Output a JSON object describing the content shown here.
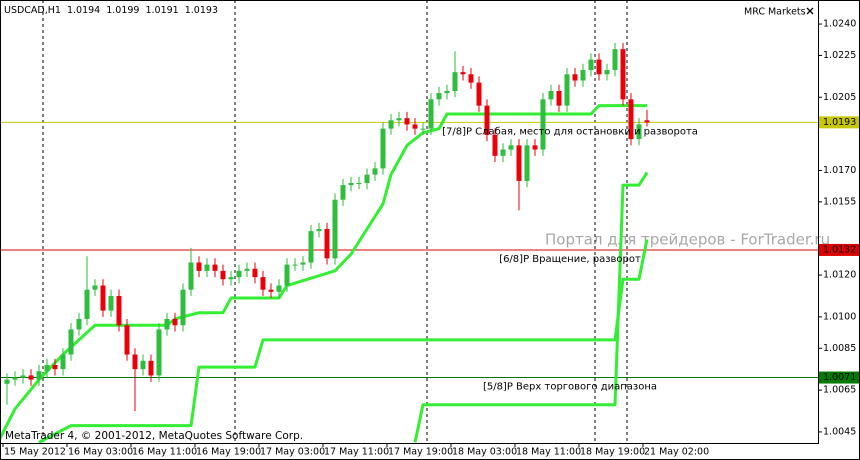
{
  "chart_data": {
    "type": "candlestick",
    "symbol": "USDCAD,H1",
    "broker": "MRC Markets",
    "watermark": "Портал для трейдеров - ForTrader.ru",
    "copyright": "MetaTrader 4, © 2001-2012, MetaQuotes Software Corp.",
    "up_color": "#2ebd3c",
    "down_color": "#e8000b",
    "categories": [
      "15 May 2012",
      null,
      null,
      null,
      null,
      null,
      null,
      null,
      "16 May 03:00",
      null,
      null,
      null,
      null,
      null,
      null,
      null,
      "16 May 11:00",
      null,
      null,
      null,
      null,
      null,
      null,
      null,
      "16 May 19:00",
      null,
      null,
      null,
      null,
      null,
      null,
      null,
      "17 May 03:00",
      null,
      null,
      null,
      null,
      null,
      null,
      null,
      "17 May 11:00",
      null,
      null,
      null,
      null,
      null,
      null,
      null,
      "17 May 19:00",
      null,
      null,
      null,
      null,
      null,
      null,
      null,
      "18 May 03:00",
      null,
      null,
      null,
      null,
      null,
      null,
      null,
      "18 May 11:00",
      null,
      null,
      null,
      null,
      null,
      null,
      null,
      "18 May 19:00",
      null,
      null,
      null,
      null,
      null,
      null,
      null,
      "21 May 02:00"
    ],
    "open": [
      1.0068,
      1.007,
      1.0071,
      1.0072,
      1.007,
      1.0074,
      1.0077,
      1.0075,
      1.0082,
      1.0094,
      1.0099,
      1.0113,
      1.0115,
      1.0103,
      1.011,
      1.0096,
      1.0082,
      1.0075,
      1.0079,
      1.0072,
      1.0094,
      1.0099,
      1.0096,
      1.0113,
      1.0126,
      1.0122,
      1.0125,
      1.0122,
      1.0118,
      1.0119,
      1.0122,
      1.0123,
      1.0119,
      1.0113,
      1.0112,
      1.0115,
      1.0125,
      1.0125,
      1.0126,
      1.0141,
      1.0142,
      1.0128,
      1.0156,
      1.0163,
      1.0164,
      1.0164,
      1.0168,
      1.0171,
      1.019,
      1.0194,
      1.0195,
      1.0192,
      1.019,
      1.019,
      1.0204,
      1.0207,
      1.0208,
      1.0217,
      1.0216,
      1.0212,
      1.0201,
      1.0187,
      1.0177,
      1.018,
      1.0182,
      1.0165,
      1.0182,
      1.018,
      1.0204,
      1.0208,
      1.0201,
      1.0216,
      1.0213,
      1.0218,
      1.0223,
      1.0216,
      1.0218,
      1.0228,
      1.0204,
      1.0185,
      1.0194
    ],
    "high": [
      1.0073,
      1.0074,
      1.0075,
      1.0075,
      1.0077,
      1.008,
      1.008,
      1.0085,
      1.0097,
      1.0102,
      1.0129,
      1.0118,
      1.0118,
      1.0113,
      1.0113,
      1.0099,
      1.0085,
      1.0082,
      1.0082,
      1.0097,
      1.0102,
      1.0102,
      1.0116,
      1.0133,
      1.0129,
      1.0128,
      1.0128,
      1.0125,
      1.0122,
      1.0125,
      1.0126,
      1.0126,
      1.0122,
      1.0116,
      1.0118,
      1.0128,
      1.0128,
      1.0129,
      1.0144,
      1.0145,
      1.0145,
      1.0159,
      1.0166,
      1.0167,
      1.0167,
      1.0171,
      1.0174,
      1.0193,
      1.0197,
      1.0198,
      1.0198,
      1.0195,
      1.0193,
      1.0207,
      1.021,
      1.0211,
      1.0227,
      1.022,
      1.0219,
      1.0215,
      1.0204,
      1.019,
      1.0183,
      1.0185,
      1.0185,
      1.0185,
      1.0185,
      1.0207,
      1.0211,
      1.0211,
      1.0219,
      1.0219,
      1.0221,
      1.0226,
      1.0226,
      1.0221,
      1.0231,
      1.0231,
      1.0207,
      1.0195,
      1.0199
    ],
    "low": [
      1.0058,
      1.0067,
      1.0068,
      1.0067,
      1.0067,
      1.0071,
      1.0072,
      1.0072,
      1.0079,
      1.0091,
      1.0096,
      1.011,
      1.01,
      1.01,
      1.0093,
      1.0079,
      1.0055,
      1.0072,
      1.0069,
      1.0069,
      1.0091,
      1.0093,
      1.0093,
      1.011,
      1.0119,
      1.0119,
      1.0119,
      1.0115,
      1.0115,
      1.0116,
      1.0119,
      1.0116,
      1.011,
      1.0109,
      1.0109,
      1.0112,
      1.0122,
      1.0122,
      1.0123,
      1.0138,
      1.0125,
      1.0125,
      1.0153,
      1.016,
      1.0161,
      1.0161,
      1.0165,
      1.0168,
      1.0187,
      1.0191,
      1.0189,
      1.0187,
      1.0187,
      1.0187,
      1.0201,
      1.0204,
      1.0205,
      1.0213,
      1.0209,
      1.0198,
      1.0184,
      1.0174,
      1.0174,
      1.0177,
      1.0151,
      1.0162,
      1.0177,
      1.0177,
      1.0201,
      1.0198,
      1.0198,
      1.021,
      1.021,
      1.0215,
      1.0213,
      1.0213,
      1.0215,
      1.0201,
      1.0182,
      1.0182,
      1.0191
    ],
    "close": [
      1.007,
      1.0071,
      1.0072,
      1.007,
      1.0074,
      1.0077,
      1.0075,
      1.0082,
      1.0094,
      1.0099,
      1.0113,
      1.0115,
      1.0103,
      1.011,
      1.0096,
      1.0082,
      1.0075,
      1.0079,
      1.0072,
      1.0094,
      1.0099,
      1.0096,
      1.0113,
      1.0126,
      1.0122,
      1.0125,
      1.0122,
      1.0118,
      1.0119,
      1.0122,
      1.0123,
      1.0119,
      1.0113,
      1.0112,
      1.0115,
      1.0125,
      1.0125,
      1.0126,
      1.0141,
      1.0142,
      1.0128,
      1.0156,
      1.0163,
      1.0164,
      1.0164,
      1.0168,
      1.0171,
      1.019,
      1.0194,
      1.0195,
      1.0192,
      1.019,
      1.019,
      1.0204,
      1.0207,
      1.0208,
      1.0217,
      1.0216,
      1.0212,
      1.0201,
      1.0187,
      1.0177,
      1.018,
      1.0182,
      1.0165,
      1.0182,
      1.018,
      1.0204,
      1.0208,
      1.0201,
      1.0216,
      1.0213,
      1.0218,
      1.0223,
      1.0216,
      1.0218,
      1.0228,
      1.0204,
      1.0185,
      1.0192,
      1.0193
    ],
    "lines": [
      {
        "color": "#33ee33",
        "x": [
          -1,
          1,
          4,
          7,
          9,
          11,
          20,
          21,
          24,
          27,
          28,
          32,
          34,
          35,
          41,
          43,
          45,
          47,
          48,
          50,
          52,
          54,
          55,
          73,
          74,
          80
        ],
        "values": [
          1.0041,
          1.0056,
          1.007,
          1.0082,
          1.0089,
          1.0096,
          1.0096,
          1.0099,
          1.0102,
          1.0102,
          1.0109,
          1.0109,
          1.0109,
          1.0115,
          1.0122,
          1.013,
          1.0142,
          1.0154,
          1.0168,
          1.0182,
          1.0188,
          1.019,
          1.0197,
          1.0197,
          1.0201,
          1.0201
        ]
      },
      {
        "color": "#33ee33",
        "x": [
          4,
          8,
          23,
          24,
          31,
          32,
          76,
          77,
          79,
          80
        ],
        "values": [
          1.004,
          1.0048,
          1.0048,
          1.0076,
          1.0076,
          1.0089,
          1.0089,
          1.0118,
          1.0118,
          1.0137
        ]
      },
      {
        "color": "#33ee33",
        "x": [
          51,
          52,
          76,
          77,
          79,
          80
        ],
        "values": [
          1.004,
          1.0058,
          1.0058,
          1.0163,
          1.0163,
          1.0169
        ]
      }
    ],
    "levels": [
      {
        "label": "[7/8]P Слабая, место для остановки и разворота",
        "value": 1.0193,
        "color": "#c8c800"
      },
      {
        "label": "[6/8]P Вращение, разворот",
        "value": 1.0132,
        "color": "#dd0000"
      },
      {
        "label": "[5/8]P Верх торгового диапазона",
        "value": 1.0071,
        "color": "#007a00"
      }
    ],
    "ylim": [
      1.00397,
      1.02515
    ],
    "yticks": [
      {
        "value": 1.024,
        "label": "1.0240"
      },
      {
        "value": 1.0225,
        "label": "1.0225"
      },
      {
        "value": 1.0205,
        "label": "1.0205"
      },
      {
        "value": 1.017,
        "label": "1.0170"
      },
      {
        "value": 1.0155,
        "label": "1.0155"
      },
      {
        "value": 1.012,
        "label": "1.0120"
      },
      {
        "value": 1.01,
        "label": "1.0100"
      },
      {
        "value": 1.0085,
        "label": "1.0085"
      },
      {
        "value": 1.0065,
        "label": "1.0065"
      },
      {
        "value": 1.0045,
        "label": "1.0045"
      }
    ]
  }
}
